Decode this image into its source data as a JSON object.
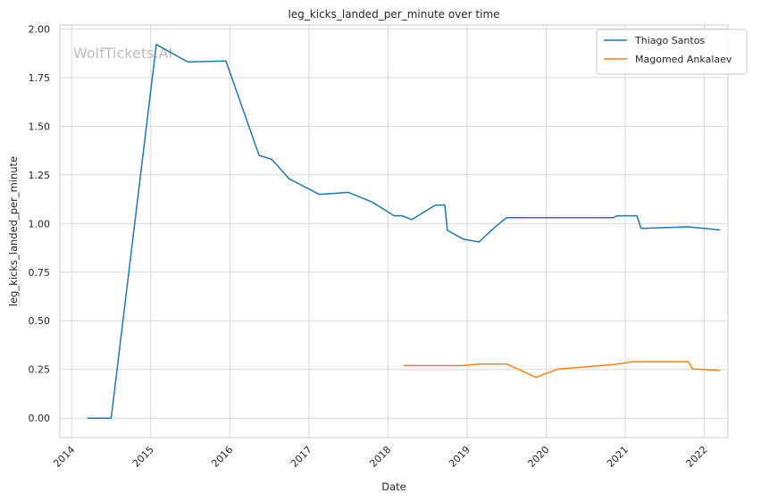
{
  "chart_data": {
    "type": "line",
    "title": "leg_kicks_landed_per_minute over time",
    "xlabel": "Date",
    "ylabel": "leg_kicks_landed_per_minute",
    "watermark": "WolfTickets.AI",
    "xlim": [
      2013.85,
      2022.3
    ],
    "ylim": [
      -0.1,
      2.02
    ],
    "x_ticks": [
      2014,
      2015,
      2016,
      2017,
      2018,
      2019,
      2020,
      2021,
      2022
    ],
    "x_tick_labels": [
      "2014",
      "2015",
      "2016",
      "2017",
      "2018",
      "2019",
      "2020",
      "2021",
      "2022"
    ],
    "y_ticks": [
      0.0,
      0.25,
      0.5,
      0.75,
      1.0,
      1.25,
      1.5,
      1.75,
      2.0
    ],
    "y_tick_labels": [
      "0.00",
      "0.25",
      "0.50",
      "0.75",
      "1.00",
      "1.25",
      "1.50",
      "1.75",
      "2.00"
    ],
    "grid": true,
    "legend_position": "top-right",
    "series": [
      {
        "name": "Thiago Santos",
        "color": "#1f77b4",
        "x": [
          2014.2,
          2014.5,
          2015.07,
          2015.47,
          2015.95,
          2016.37,
          2016.53,
          2016.75,
          2017.13,
          2017.5,
          2017.8,
          2018.08,
          2018.18,
          2018.3,
          2018.6,
          2018.72,
          2018.75,
          2018.95,
          2019.15,
          2019.35,
          2019.5,
          2020.3,
          2020.85,
          2020.9,
          2021.15,
          2021.2,
          2021.8,
          2022.2
        ],
        "y": [
          0.0,
          0.0,
          1.92,
          1.83,
          1.835,
          1.35,
          1.33,
          1.23,
          1.15,
          1.16,
          1.11,
          1.04,
          1.04,
          1.02,
          1.095,
          1.095,
          0.965,
          0.92,
          0.905,
          0.98,
          1.03,
          1.03,
          1.03,
          1.04,
          1.04,
          0.975,
          0.983,
          0.967
        ]
      },
      {
        "name": "Magomed Ankalaev",
        "color": "#ff7f0e",
        "x": [
          2018.2,
          2018.95,
          2019.15,
          2019.5,
          2019.87,
          2020.15,
          2020.85,
          2021.1,
          2021.8,
          2021.85,
          2022.2
        ],
        "y": [
          0.27,
          0.27,
          0.278,
          0.278,
          0.21,
          0.252,
          0.275,
          0.29,
          0.29,
          0.253,
          0.245
        ]
      }
    ]
  }
}
